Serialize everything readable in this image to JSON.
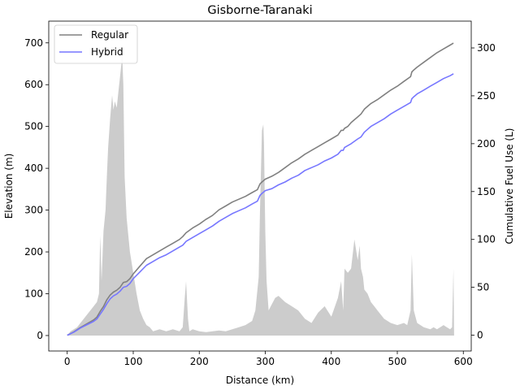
{
  "chart_data": {
    "type": "line",
    "title": "Gisborne-Taranaki",
    "xlabel": "Distance (km)",
    "ylabel": "Elevation (m)",
    "y2label": "Cumulative Fuel Use (L)",
    "xlim": [
      -28,
      612
    ],
    "ylim": [
      -37,
      752
    ],
    "y2lim": [
      -16.5,
      328
    ],
    "xticks": [
      0,
      100,
      200,
      300,
      400,
      500,
      600
    ],
    "yticks": [
      0,
      100,
      200,
      300,
      400,
      500,
      600,
      700
    ],
    "y2ticks": [
      0,
      50,
      100,
      150,
      200,
      250,
      300
    ],
    "legend_position": "upper-left",
    "elevation": {
      "color": "#cccccc",
      "x": [
        0,
        5,
        10,
        15,
        20,
        25,
        30,
        35,
        40,
        45,
        48,
        50,
        52,
        55,
        58,
        60,
        62,
        65,
        68,
        70,
        72,
        75,
        78,
        80,
        82,
        83,
        85,
        87,
        90,
        95,
        100,
        105,
        110,
        115,
        120,
        125,
        130,
        140,
        150,
        160,
        170,
        175,
        178,
        180,
        183,
        185,
        190,
        200,
        210,
        220,
        230,
        240,
        250,
        260,
        270,
        280,
        285,
        290,
        292,
        295,
        297,
        298,
        300,
        302,
        305,
        310,
        315,
        320,
        330,
        340,
        350,
        360,
        370,
        380,
        390,
        400,
        410,
        415,
        418,
        420,
        425,
        430,
        435,
        440,
        443,
        445,
        448,
        450,
        455,
        460,
        465,
        470,
        480,
        490,
        500,
        510,
        515,
        520,
        522,
        525,
        530,
        540,
        550,
        555,
        560,
        565,
        570,
        575,
        580,
        583,
        585,
        586
      ],
      "values": [
        0,
        10,
        15,
        20,
        30,
        40,
        50,
        60,
        70,
        80,
        100,
        240,
        130,
        250,
        300,
        380,
        450,
        520,
        575,
        540,
        560,
        545,
        590,
        620,
        650,
        680,
        600,
        380,
        280,
        200,
        150,
        100,
        60,
        40,
        25,
        20,
        10,
        15,
        10,
        15,
        10,
        20,
        90,
        130,
        40,
        10,
        15,
        10,
        8,
        10,
        12,
        10,
        15,
        20,
        25,
        35,
        60,
        140,
        300,
        490,
        505,
        460,
        250,
        130,
        60,
        75,
        90,
        95,
        80,
        70,
        60,
        40,
        30,
        55,
        70,
        45,
        90,
        130,
        60,
        160,
        150,
        160,
        230,
        180,
        215,
        160,
        140,
        110,
        100,
        80,
        70,
        60,
        40,
        30,
        25,
        30,
        25,
        60,
        195,
        60,
        30,
        20,
        15,
        20,
        15,
        20,
        25,
        20,
        15,
        20,
        160,
        0
      ]
    },
    "series": [
      {
        "name": "Regular",
        "color": "#808080",
        "x": [
          0,
          10,
          20,
          30,
          40,
          45,
          50,
          55,
          60,
          65,
          70,
          75,
          80,
          85,
          90,
          95,
          100,
          110,
          120,
          130,
          140,
          150,
          160,
          170,
          175,
          180,
          190,
          200,
          210,
          220,
          230,
          240,
          250,
          260,
          270,
          280,
          288,
          290,
          292,
          295,
          300,
          310,
          320,
          330,
          340,
          350,
          360,
          370,
          380,
          390,
          400,
          410,
          415,
          418,
          420,
          425,
          430,
          440,
          445,
          450,
          455,
          460,
          470,
          480,
          490,
          500,
          510,
          520,
          522,
          525,
          530,
          540,
          550,
          560,
          570,
          580,
          585
        ],
        "values": [
          0,
          3.5,
          8,
          12,
          16,
          19,
          25,
          30,
          37,
          42,
          45,
          47,
          50,
          55,
          56,
          59,
          64,
          72,
          80,
          84,
          88,
          92,
          96,
          100,
          103,
          107,
          112,
          116,
          121,
          125,
          131,
          135,
          139,
          142,
          145,
          149,
          152,
          155,
          158,
          160,
          163,
          166,
          170,
          175,
          180,
          184,
          189,
          193,
          197,
          201,
          205,
          209,
          214,
          214,
          216,
          218,
          222,
          228,
          231,
          236,
          239,
          242,
          246,
          251,
          256,
          260,
          265,
          270,
          275,
          277,
          280,
          285,
          290,
          295,
          299,
          303,
          305
        ]
      },
      {
        "name": "Hybrid",
        "color": "#7777ff",
        "x": [
          0,
          10,
          20,
          30,
          40,
          45,
          50,
          55,
          60,
          65,
          70,
          75,
          80,
          85,
          90,
          95,
          100,
          110,
          120,
          130,
          140,
          150,
          160,
          170,
          175,
          180,
          190,
          200,
          210,
          220,
          230,
          240,
          250,
          260,
          270,
          280,
          288,
          290,
          292,
          295,
          300,
          310,
          320,
          330,
          340,
          350,
          360,
          370,
          380,
          390,
          400,
          410,
          415,
          418,
          420,
          425,
          430,
          440,
          445,
          450,
          455,
          460,
          470,
          480,
          490,
          500,
          510,
          520,
          522,
          525,
          530,
          540,
          550,
          560,
          570,
          580,
          585
        ],
        "values": [
          0,
          3.2,
          7.5,
          11,
          14.5,
          17,
          22,
          27,
          33,
          38,
          41,
          43,
          46,
          50,
          51,
          54,
          59,
          66,
          73,
          77,
          81,
          84,
          88,
          92,
          94,
          98,
          102,
          106,
          110,
          114,
          119,
          123,
          127,
          130,
          133,
          137,
          140,
          143,
          146,
          148,
          151,
          153,
          157,
          160,
          164,
          167,
          172,
          175,
          178,
          182,
          185,
          189,
          193,
          193,
          196,
          198,
          200,
          205,
          207,
          212,
          215,
          218,
          222,
          226,
          231,
          235,
          239,
          243,
          247,
          249,
          252,
          256,
          260,
          264,
          268,
          271,
          273
        ]
      }
    ]
  }
}
